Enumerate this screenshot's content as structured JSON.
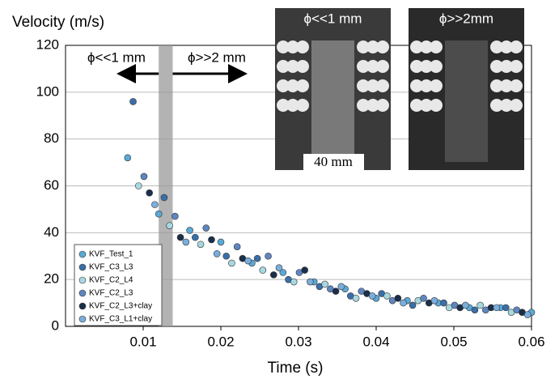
{
  "chart_data": {
    "type": "scatter",
    "y_label": "Velocity (m/s)",
    "x_label": "Time (s)",
    "xlim": [
      0,
      0.06
    ],
    "xticks": [
      0.01,
      0.02,
      0.03,
      0.04,
      0.05,
      0.06
    ],
    "ylim": [
      0,
      120
    ],
    "yticks": [
      0,
      20,
      40,
      60,
      80,
      100,
      120
    ],
    "grid": true,
    "legend": "lower left",
    "shaded_region": [
      0.012,
      0.0138
    ],
    "annotations": [
      "ϕ<<1 mm",
      "ϕ>>2 mm"
    ],
    "insets": [
      {
        "title": "ϕ<<1 mm",
        "scale_label": "40 mm"
      },
      {
        "title": "ϕ>>2mm"
      }
    ],
    "series": [
      {
        "name": "KVF_Test_1",
        "color": "#5aa9d6",
        "x": [
          0.008,
          0.012,
          0.016,
          0.02,
          0.024,
          0.028,
          0.032,
          0.036,
          0.04,
          0.044,
          0.048,
          0.052,
          0.056,
          0.06
        ],
        "values": [
          72,
          48,
          41,
          36,
          27,
          23,
          19,
          16,
          12,
          11,
          10,
          8,
          8,
          6
        ]
      },
      {
        "name": "KVF_C3_L3",
        "color": "#3a6fa8",
        "x": [
          0.0087,
          0.0127,
          0.0167,
          0.0207,
          0.0247,
          0.0287,
          0.0327,
          0.0367,
          0.0407,
          0.0447,
          0.0487,
          0.0527,
          0.0567
        ],
        "values": [
          96,
          55,
          38,
          30,
          29,
          20,
          17,
          13,
          14,
          9,
          10,
          7,
          8
        ]
      },
      {
        "name": "KVF_C2_L4",
        "color": "#a7d8e0",
        "x": [
          0.0094,
          0.0134,
          0.0174,
          0.0214,
          0.0254,
          0.0294,
          0.0334,
          0.0374,
          0.0414,
          0.0454,
          0.0494,
          0.0534,
          0.0574
        ],
        "values": [
          60,
          43,
          35,
          27,
          24,
          19,
          18,
          12,
          13,
          11,
          8,
          9,
          6
        ]
      },
      {
        "name": "KVF_C2_L3",
        "color": "#5e86c0",
        "x": [
          0.0101,
          0.0141,
          0.0181,
          0.0221,
          0.0261,
          0.0301,
          0.0341,
          0.0381,
          0.0421,
          0.0461,
          0.0501,
          0.0541,
          0.0581
        ],
        "values": [
          64,
          47,
          42,
          34,
          30,
          23,
          16,
          15,
          11,
          12,
          9,
          7,
          7
        ]
      },
      {
        "name": "KVF_C2_L3+clay",
        "color": "#1b2e4a",
        "x": [
          0.0108,
          0.0148,
          0.0188,
          0.0228,
          0.0268,
          0.0308,
          0.0348,
          0.0388,
          0.0428,
          0.0468,
          0.0508,
          0.0548,
          0.0588
        ],
        "values": [
          57,
          38,
          37,
          29,
          22,
          24,
          15,
          14,
          12,
          10,
          8,
          8,
          6
        ]
      },
      {
        "name": "KVF_C3_L1+clay",
        "color": "#7aaedc",
        "x": [
          0.0115,
          0.0155,
          0.0195,
          0.0235,
          0.0275,
          0.0315,
          0.0355,
          0.0395,
          0.0435,
          0.0475,
          0.0515,
          0.0555,
          0.0595
        ],
        "values": [
          52,
          36,
          31,
          28,
          25,
          19,
          17,
          13,
          10,
          11,
          9,
          8,
          5
        ]
      }
    ]
  }
}
